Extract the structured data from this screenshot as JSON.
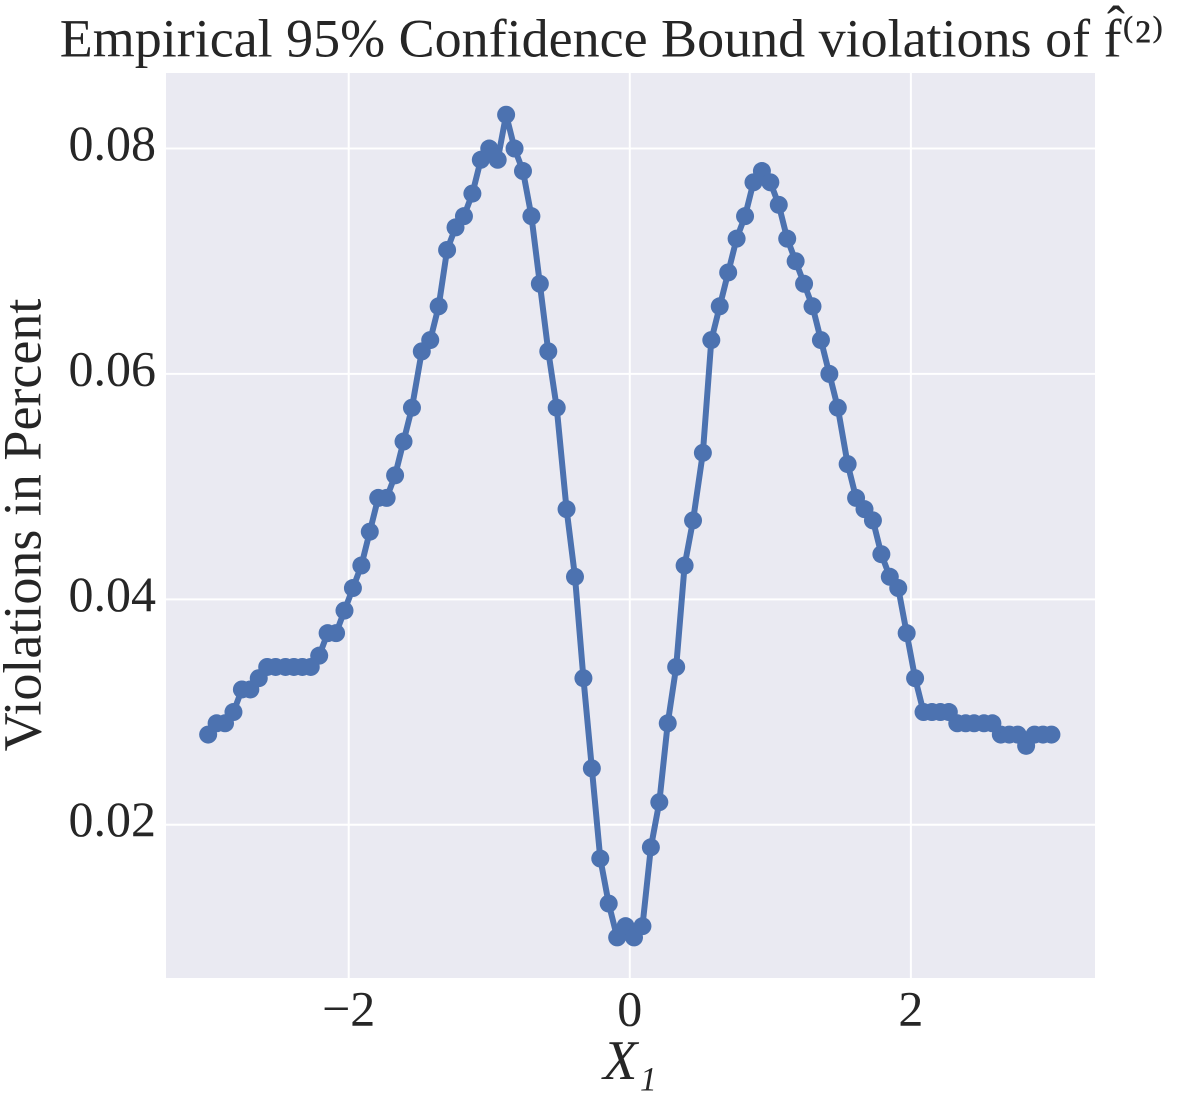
{
  "chart_data": {
    "type": "line",
    "title": "Empirical 95% Confidence Bound violations of f̂⁽²⁾",
    "xlabel": "X₁",
    "ylabel": "Violations in Percent",
    "x": [
      -3.0,
      -2.94,
      -2.88,
      -2.82,
      -2.76,
      -2.7,
      -2.64,
      -2.58,
      -2.52,
      -2.45,
      -2.39,
      -2.33,
      -2.27,
      -2.21,
      -2.15,
      -2.09,
      -2.03,
      -1.97,
      -1.91,
      -1.85,
      -1.79,
      -1.73,
      -1.67,
      -1.61,
      -1.55,
      -1.48,
      -1.42,
      -1.36,
      -1.3,
      -1.24,
      -1.18,
      -1.12,
      -1.06,
      -1.0,
      -0.94,
      -0.88,
      -0.82,
      -0.76,
      -0.7,
      -0.64,
      -0.58,
      -0.52,
      -0.45,
      -0.39,
      -0.33,
      -0.27,
      -0.21,
      -0.15,
      -0.09,
      -0.03,
      0.03,
      0.09,
      0.15,
      0.21,
      0.27,
      0.33,
      0.39,
      0.45,
      0.52,
      0.58,
      0.64,
      0.7,
      0.76,
      0.82,
      0.88,
      0.94,
      1.0,
      1.06,
      1.12,
      1.18,
      1.24,
      1.3,
      1.36,
      1.42,
      1.48,
      1.55,
      1.61,
      1.67,
      1.73,
      1.79,
      1.85,
      1.91,
      1.97,
      2.03,
      2.09,
      2.15,
      2.21,
      2.27,
      2.33,
      2.39,
      2.45,
      2.52,
      2.58,
      2.64,
      2.7,
      2.76,
      2.82,
      2.88,
      2.94,
      3.0
    ],
    "series": [
      {
        "color": "#4c72b0",
        "values": [
          0.028,
          0.029,
          0.029,
          0.03,
          0.032,
          0.032,
          0.033,
          0.034,
          0.034,
          0.034,
          0.034,
          0.034,
          0.034,
          0.035,
          0.037,
          0.037,
          0.039,
          0.041,
          0.043,
          0.046,
          0.049,
          0.049,
          0.051,
          0.054,
          0.057,
          0.062,
          0.063,
          0.066,
          0.071,
          0.073,
          0.074,
          0.076,
          0.079,
          0.08,
          0.079,
          0.083,
          0.08,
          0.078,
          0.074,
          0.068,
          0.062,
          0.057,
          0.048,
          0.042,
          0.033,
          0.025,
          0.017,
          0.013,
          0.01,
          0.011,
          0.01,
          0.011,
          0.018,
          0.022,
          0.029,
          0.034,
          0.043,
          0.047,
          0.053,
          0.063,
          0.066,
          0.069,
          0.072,
          0.074,
          0.077,
          0.078,
          0.077,
          0.075,
          0.072,
          0.07,
          0.068,
          0.066,
          0.063,
          0.06,
          0.057,
          0.052,
          0.049,
          0.048,
          0.047,
          0.044,
          0.042,
          0.041,
          0.037,
          0.033,
          0.03,
          0.03,
          0.03,
          0.03,
          0.029,
          0.029,
          0.029,
          0.029,
          0.029,
          0.028,
          0.028,
          0.028,
          0.027,
          0.028,
          0.028,
          0.028
        ]
      }
    ],
    "xlim": [
      -3.3,
      3.31
    ],
    "ylim": [
      0.0064,
      0.0867
    ],
    "xticks": [
      {
        "value": -2,
        "label": "−2"
      },
      0,
      2
    ],
    "yticks": [
      0.02,
      0.04,
      0.06,
      0.08
    ],
    "grid": true
  }
}
